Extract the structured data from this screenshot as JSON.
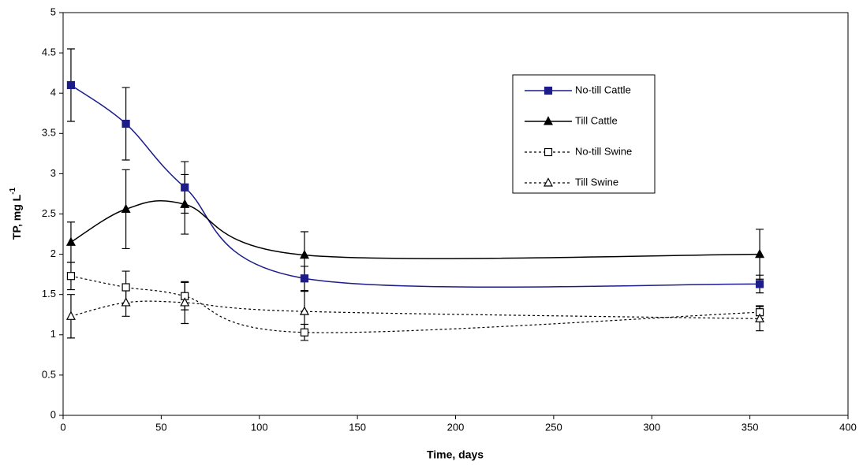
{
  "chart_data": {
    "type": "line",
    "xlabel": "Time, days",
    "ylabel": {
      "text": "TP, mg L",
      "superscript": "-1"
    },
    "xlim": [
      0,
      400
    ],
    "xticks": [
      0,
      50,
      100,
      150,
      200,
      250,
      300,
      350,
      400
    ],
    "ylim": [
      0,
      5
    ],
    "yticks": [
      0,
      0.5,
      1,
      1.5,
      2,
      2.5,
      3,
      3.5,
      4,
      4.5,
      5
    ],
    "smooth": true,
    "legend": "upper right",
    "x": [
      4,
      32,
      62,
      123,
      355
    ],
    "series": [
      {
        "name": "No-till Cattle",
        "color": "#1c1c8a",
        "dashed": false,
        "marker": "square",
        "filled": true,
        "values": [
          4.1,
          3.62,
          2.83,
          1.7,
          1.63
        ],
        "errors": [
          0.45,
          0.45,
          0.32,
          0.15,
          0.11
        ]
      },
      {
        "name": "Till Cattle",
        "color": "#000000",
        "dashed": false,
        "marker": "triangle",
        "filled": true,
        "values": [
          2.15,
          2.56,
          2.62,
          1.99,
          2.0
        ],
        "errors": [
          0.25,
          0.49,
          0.37,
          0.29,
          0.31
        ]
      },
      {
        "name": "No-till Swine",
        "color": "#000000",
        "dashed": true,
        "marker": "square",
        "filled": false,
        "values": [
          1.73,
          1.59,
          1.48,
          1.03,
          1.28
        ],
        "errors": [
          0.17,
          0.2,
          0.17,
          0.1,
          0.08
        ]
      },
      {
        "name": "Till Swine",
        "color": "#000000",
        "dashed": true,
        "marker": "triangle",
        "filled": false,
        "values": [
          1.23,
          1.4,
          1.4,
          1.29,
          1.2
        ],
        "errors": [
          0.27,
          0.17,
          0.26,
          0.25,
          0.15
        ]
      }
    ]
  }
}
